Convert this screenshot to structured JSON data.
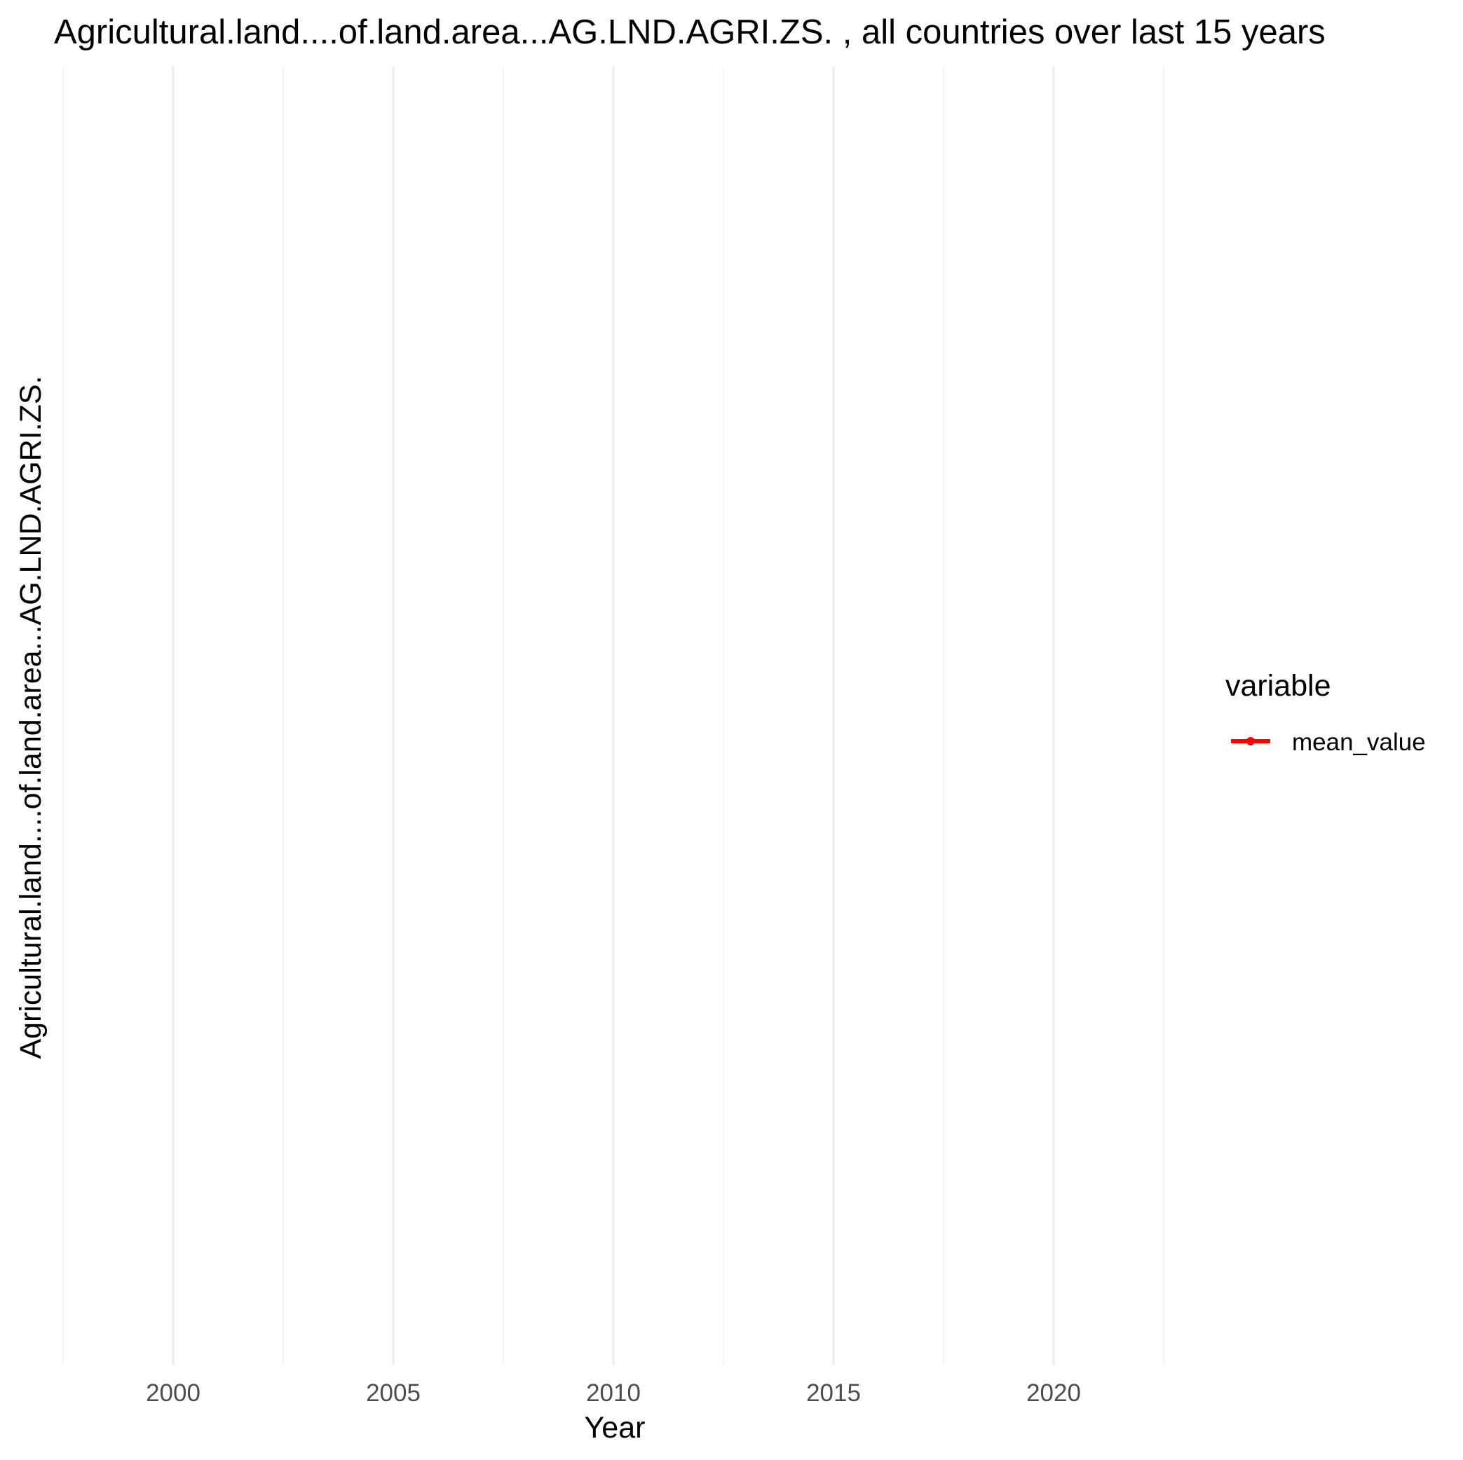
{
  "chart_data": {
    "type": "line",
    "title": "Agricultural.land....of.land.area...AG.LND.AGRI.ZS. , all countries over last 15 years",
    "xlabel": "Year",
    "ylabel": "Agricultural.land....of.land.area...AG.LND.AGRI.ZS.",
    "x_ticks": [
      2000,
      2005,
      2010,
      2015,
      2020
    ],
    "xlim": [
      1997.5,
      2022.5
    ],
    "grid": true,
    "legend": {
      "title": "variable",
      "position": "right",
      "entries": [
        {
          "label": "mean_value",
          "color": "#ff0000"
        }
      ]
    },
    "series": [
      {
        "name": "mean_value",
        "color": "#ff0000",
        "x": [],
        "y": []
      }
    ]
  }
}
